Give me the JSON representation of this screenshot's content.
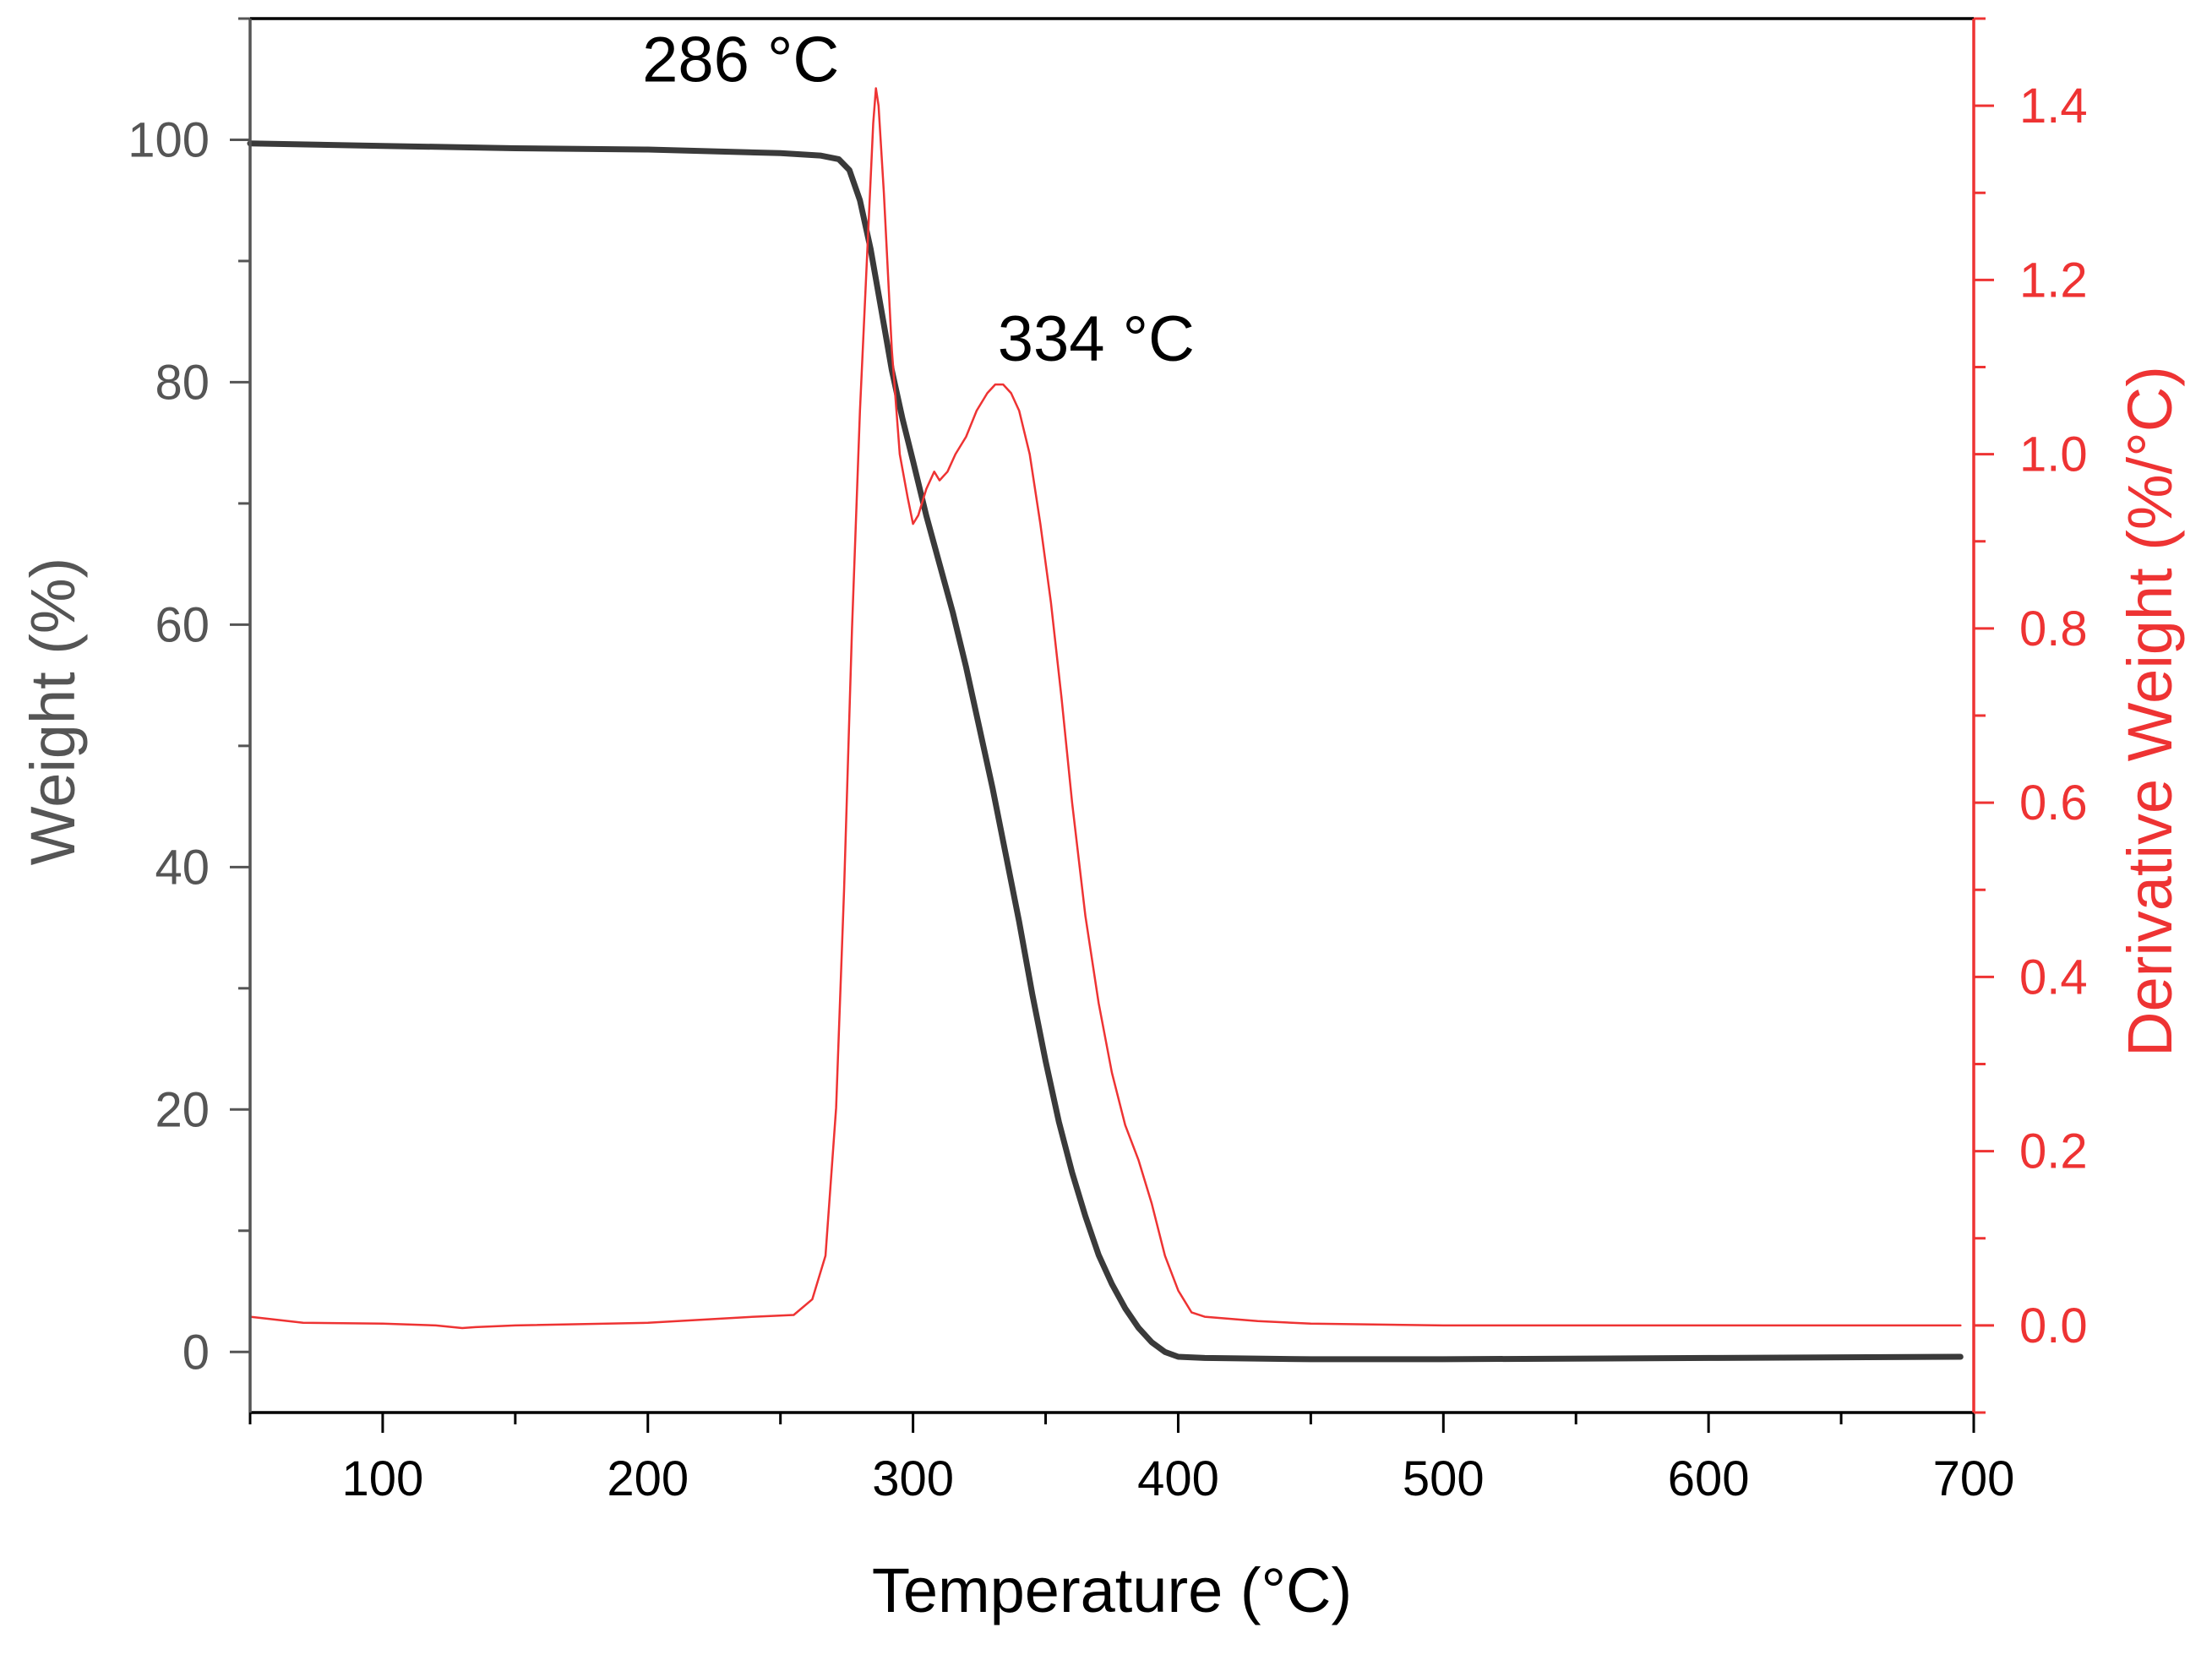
{
  "chart_data": {
    "type": "line",
    "xlabel": "Temperature (°C)",
    "ylabel": "Weight (%)",
    "y2label": "Derivative Weight (%/°C)",
    "xlim": [
      50,
      700
    ],
    "ylim": [
      -5,
      110
    ],
    "y2lim": [
      -0.1,
      1.5
    ],
    "x_ticks": [
      100,
      200,
      300,
      400,
      500,
      600,
      700
    ],
    "y_ticks": [
      0,
      20,
      40,
      60,
      80,
      100
    ],
    "y2_ticks": [
      0.0,
      0.2,
      0.4,
      0.6,
      0.8,
      1.0,
      1.2,
      1.4
    ],
    "x_tick_labels": [
      "100",
      "200",
      "300",
      "400",
      "500",
      "600",
      "700"
    ],
    "y_tick_labels": [
      "0",
      "20",
      "40",
      "60",
      "80",
      "100"
    ],
    "y2_tick_labels": [
      "0.0",
      "0.2",
      "0.4",
      "0.6",
      "0.8",
      "1.0",
      "1.2",
      "1.4"
    ],
    "colors": {
      "weight": "#3a3a3a",
      "derivative": "#ee3333",
      "left_axis": "#555555",
      "right_axis": "#ee3333",
      "frame": "#000000"
    },
    "series": [
      {
        "name": "Weight",
        "axis": "left",
        "points": [
          [
            50,
            99.7
          ],
          [
            100,
            99.5
          ],
          [
            150,
            99.3
          ],
          [
            200,
            99.2
          ],
          [
            250,
            98.9
          ],
          [
            265,
            98.7
          ],
          [
            272,
            98.4
          ],
          [
            276,
            97.5
          ],
          [
            280,
            95.0
          ],
          [
            284,
            91.0
          ],
          [
            288,
            86.0
          ],
          [
            292,
            81.0
          ],
          [
            296,
            77.0
          ],
          [
            300,
            73.5
          ],
          [
            305,
            69.0
          ],
          [
            310,
            65.0
          ],
          [
            315,
            61.0
          ],
          [
            320,
            56.5
          ],
          [
            325,
            51.5
          ],
          [
            330,
            46.5
          ],
          [
            335,
            41.0
          ],
          [
            340,
            35.5
          ],
          [
            345,
            29.5
          ],
          [
            350,
            24.0
          ],
          [
            355,
            19.0
          ],
          [
            360,
            14.8
          ],
          [
            365,
            11.2
          ],
          [
            370,
            8.0
          ],
          [
            375,
            5.6
          ],
          [
            380,
            3.6
          ],
          [
            385,
            2.0
          ],
          [
            390,
            0.8
          ],
          [
            395,
            0.0
          ],
          [
            400,
            -0.4
          ],
          [
            410,
            -0.5
          ],
          [
            450,
            -0.6
          ],
          [
            500,
            -0.6
          ],
          [
            600,
            -0.5
          ],
          [
            695,
            -0.4
          ]
        ]
      },
      {
        "name": "Derivative Weight",
        "axis": "right",
        "points": [
          [
            50,
            0.01
          ],
          [
            70,
            0.003
          ],
          [
            100,
            0.002
          ],
          [
            120,
            0.0
          ],
          [
            130,
            -0.003
          ],
          [
            135,
            -0.002
          ],
          [
            150,
            0.0
          ],
          [
            200,
            0.003
          ],
          [
            240,
            0.01
          ],
          [
            255,
            0.012
          ],
          [
            262,
            0.03
          ],
          [
            267,
            0.08
          ],
          [
            271,
            0.25
          ],
          [
            274,
            0.5
          ],
          [
            277,
            0.8
          ],
          [
            280,
            1.05
          ],
          [
            283,
            1.25
          ],
          [
            285,
            1.38
          ],
          [
            286,
            1.42
          ],
          [
            287,
            1.4
          ],
          [
            289,
            1.3
          ],
          [
            292,
            1.12
          ],
          [
            295,
            1.0
          ],
          [
            298,
            0.95
          ],
          [
            300,
            0.92
          ],
          [
            302,
            0.93
          ],
          [
            305,
            0.96
          ],
          [
            308,
            0.98
          ],
          [
            310,
            0.97
          ],
          [
            313,
            0.98
          ],
          [
            316,
            1.0
          ],
          [
            320,
            1.02
          ],
          [
            324,
            1.05
          ],
          [
            328,
            1.07
          ],
          [
            331,
            1.08
          ],
          [
            334,
            1.08
          ],
          [
            337,
            1.07
          ],
          [
            340,
            1.05
          ],
          [
            344,
            1.0
          ],
          [
            348,
            0.92
          ],
          [
            352,
            0.83
          ],
          [
            356,
            0.72
          ],
          [
            360,
            0.6
          ],
          [
            365,
            0.47
          ],
          [
            370,
            0.37
          ],
          [
            375,
            0.29
          ],
          [
            380,
            0.23
          ],
          [
            385,
            0.19
          ],
          [
            390,
            0.14
          ],
          [
            395,
            0.08
          ],
          [
            400,
            0.04
          ],
          [
            405,
            0.015
          ],
          [
            410,
            0.01
          ],
          [
            430,
            0.005
          ],
          [
            450,
            0.002
          ],
          [
            500,
            0.0
          ],
          [
            600,
            0.0
          ],
          [
            695,
            0.0
          ]
        ]
      }
    ],
    "annotations": [
      {
        "text": "286 °C",
        "x": 286,
        "y2": 1.42
      },
      {
        "text": "334 °C",
        "x": 334,
        "y2": 1.08
      }
    ]
  }
}
